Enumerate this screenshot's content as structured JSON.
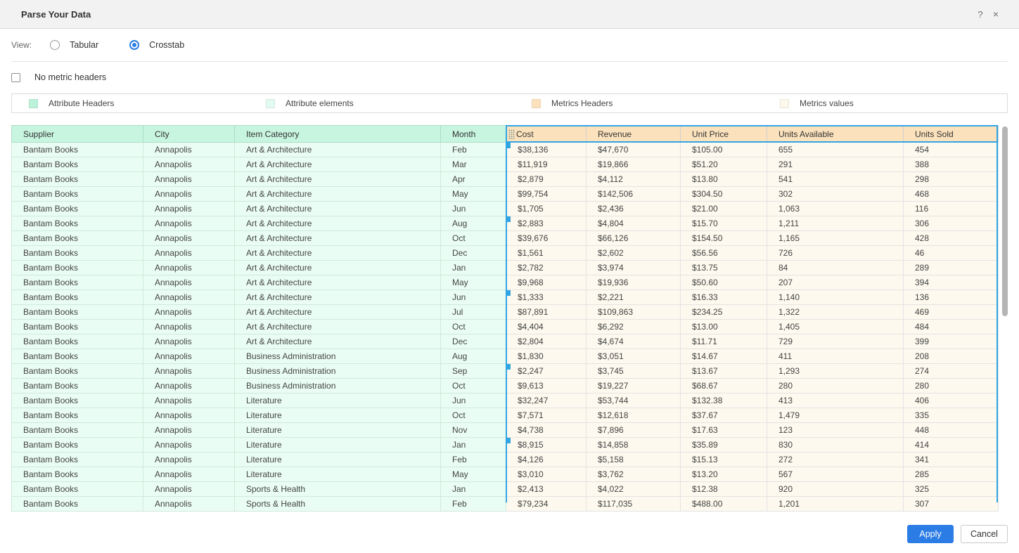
{
  "dialog": {
    "title": "Parse Your Data",
    "help_icon": "?",
    "close_icon": "×"
  },
  "view": {
    "label": "View:",
    "options": [
      {
        "label": "Tabular",
        "selected": false
      },
      {
        "label": "Crosstab",
        "selected": true
      }
    ]
  },
  "options": {
    "no_metric_headers_label": "No metric headers",
    "checked": false
  },
  "legend": [
    {
      "label": "Attribute Headers",
      "color": "#c8f5e0"
    },
    {
      "label": "Attribute elements",
      "color": "#eafdf4"
    },
    {
      "label": "Metrics Headers",
      "color": "#fbe2bd"
    },
    {
      "label": "Metrics values",
      "color": "#fdf9ee"
    }
  ],
  "table": {
    "attribute_headers": [
      "Supplier",
      "City",
      "Item Category",
      "Month"
    ],
    "metric_headers": [
      "Cost",
      "Revenue",
      "Unit Price",
      "Units Available",
      "Units Sold"
    ],
    "selection_color": "#31a5e4",
    "selected_region": "metrics",
    "notch_rows": [
      0,
      5,
      10,
      15,
      20
    ],
    "rows": [
      [
        "Bantam Books",
        "Annapolis",
        "Art & Architecture",
        "Feb",
        "$38,136",
        "$47,670",
        "$105.00",
        "655",
        "454"
      ],
      [
        "Bantam Books",
        "Annapolis",
        "Art & Architecture",
        "Mar",
        "$11,919",
        "$19,866",
        "$51.20",
        "291",
        "388"
      ],
      [
        "Bantam Books",
        "Annapolis",
        "Art & Architecture",
        "Apr",
        "$2,879",
        "$4,112",
        "$13.80",
        "541",
        "298"
      ],
      [
        "Bantam Books",
        "Annapolis",
        "Art & Architecture",
        "May",
        "$99,754",
        "$142,506",
        "$304.50",
        "302",
        "468"
      ],
      [
        "Bantam Books",
        "Annapolis",
        "Art & Architecture",
        "Jun",
        "$1,705",
        "$2,436",
        "$21.00",
        "1,063",
        "116"
      ],
      [
        "Bantam Books",
        "Annapolis",
        "Art & Architecture",
        "Aug",
        "$2,883",
        "$4,804",
        "$15.70",
        "1,211",
        "306"
      ],
      [
        "Bantam Books",
        "Annapolis",
        "Art & Architecture",
        "Oct",
        "$39,676",
        "$66,126",
        "$154.50",
        "1,165",
        "428"
      ],
      [
        "Bantam Books",
        "Annapolis",
        "Art & Architecture",
        "Dec",
        "$1,561",
        "$2,602",
        "$56.56",
        "726",
        "46"
      ],
      [
        "Bantam Books",
        "Annapolis",
        "Art & Architecture",
        "Jan",
        "$2,782",
        "$3,974",
        "$13.75",
        "84",
        "289"
      ],
      [
        "Bantam Books",
        "Annapolis",
        "Art & Architecture",
        "May",
        "$9,968",
        "$19,936",
        "$50.60",
        "207",
        "394"
      ],
      [
        "Bantam Books",
        "Annapolis",
        "Art & Architecture",
        "Jun",
        "$1,333",
        "$2,221",
        "$16.33",
        "1,140",
        "136"
      ],
      [
        "Bantam Books",
        "Annapolis",
        "Art & Architecture",
        "Jul",
        "$87,891",
        "$109,863",
        "$234.25",
        "1,322",
        "469"
      ],
      [
        "Bantam Books",
        "Annapolis",
        "Art & Architecture",
        "Oct",
        "$4,404",
        "$6,292",
        "$13.00",
        "1,405",
        "484"
      ],
      [
        "Bantam Books",
        "Annapolis",
        "Art & Architecture",
        "Dec",
        "$2,804",
        "$4,674",
        "$11.71",
        "729",
        "399"
      ],
      [
        "Bantam Books",
        "Annapolis",
        "Business Administration",
        "Aug",
        "$1,830",
        "$3,051",
        "$14.67",
        "411",
        "208"
      ],
      [
        "Bantam Books",
        "Annapolis",
        "Business Administration",
        "Sep",
        "$2,247",
        "$3,745",
        "$13.67",
        "1,293",
        "274"
      ],
      [
        "Bantam Books",
        "Annapolis",
        "Business Administration",
        "Oct",
        "$9,613",
        "$19,227",
        "$68.67",
        "280",
        "280"
      ],
      [
        "Bantam Books",
        "Annapolis",
        "Literature",
        "Jun",
        "$32,247",
        "$53,744",
        "$132.38",
        "413",
        "406"
      ],
      [
        "Bantam Books",
        "Annapolis",
        "Literature",
        "Oct",
        "$7,571",
        "$12,618",
        "$37.67",
        "1,479",
        "335"
      ],
      [
        "Bantam Books",
        "Annapolis",
        "Literature",
        "Nov",
        "$4,738",
        "$7,896",
        "$17.63",
        "123",
        "448"
      ],
      [
        "Bantam Books",
        "Annapolis",
        "Literature",
        "Jan",
        "$8,915",
        "$14,858",
        "$35.89",
        "830",
        "414"
      ],
      [
        "Bantam Books",
        "Annapolis",
        "Literature",
        "Feb",
        "$4,126",
        "$5,158",
        "$15.13",
        "272",
        "341"
      ],
      [
        "Bantam Books",
        "Annapolis",
        "Literature",
        "May",
        "$3,010",
        "$3,762",
        "$13.20",
        "567",
        "285"
      ],
      [
        "Bantam Books",
        "Annapolis",
        "Sports & Health",
        "Jan",
        "$2,413",
        "$4,022",
        "$12.38",
        "920",
        "325"
      ],
      [
        "Bantam Books",
        "Annapolis",
        "Sports & Health",
        "Feb",
        "$79,234",
        "$117,035",
        "$488.00",
        "1,201",
        "307"
      ]
    ]
  },
  "footer": {
    "apply_label": "Apply",
    "cancel_label": "Cancel"
  }
}
